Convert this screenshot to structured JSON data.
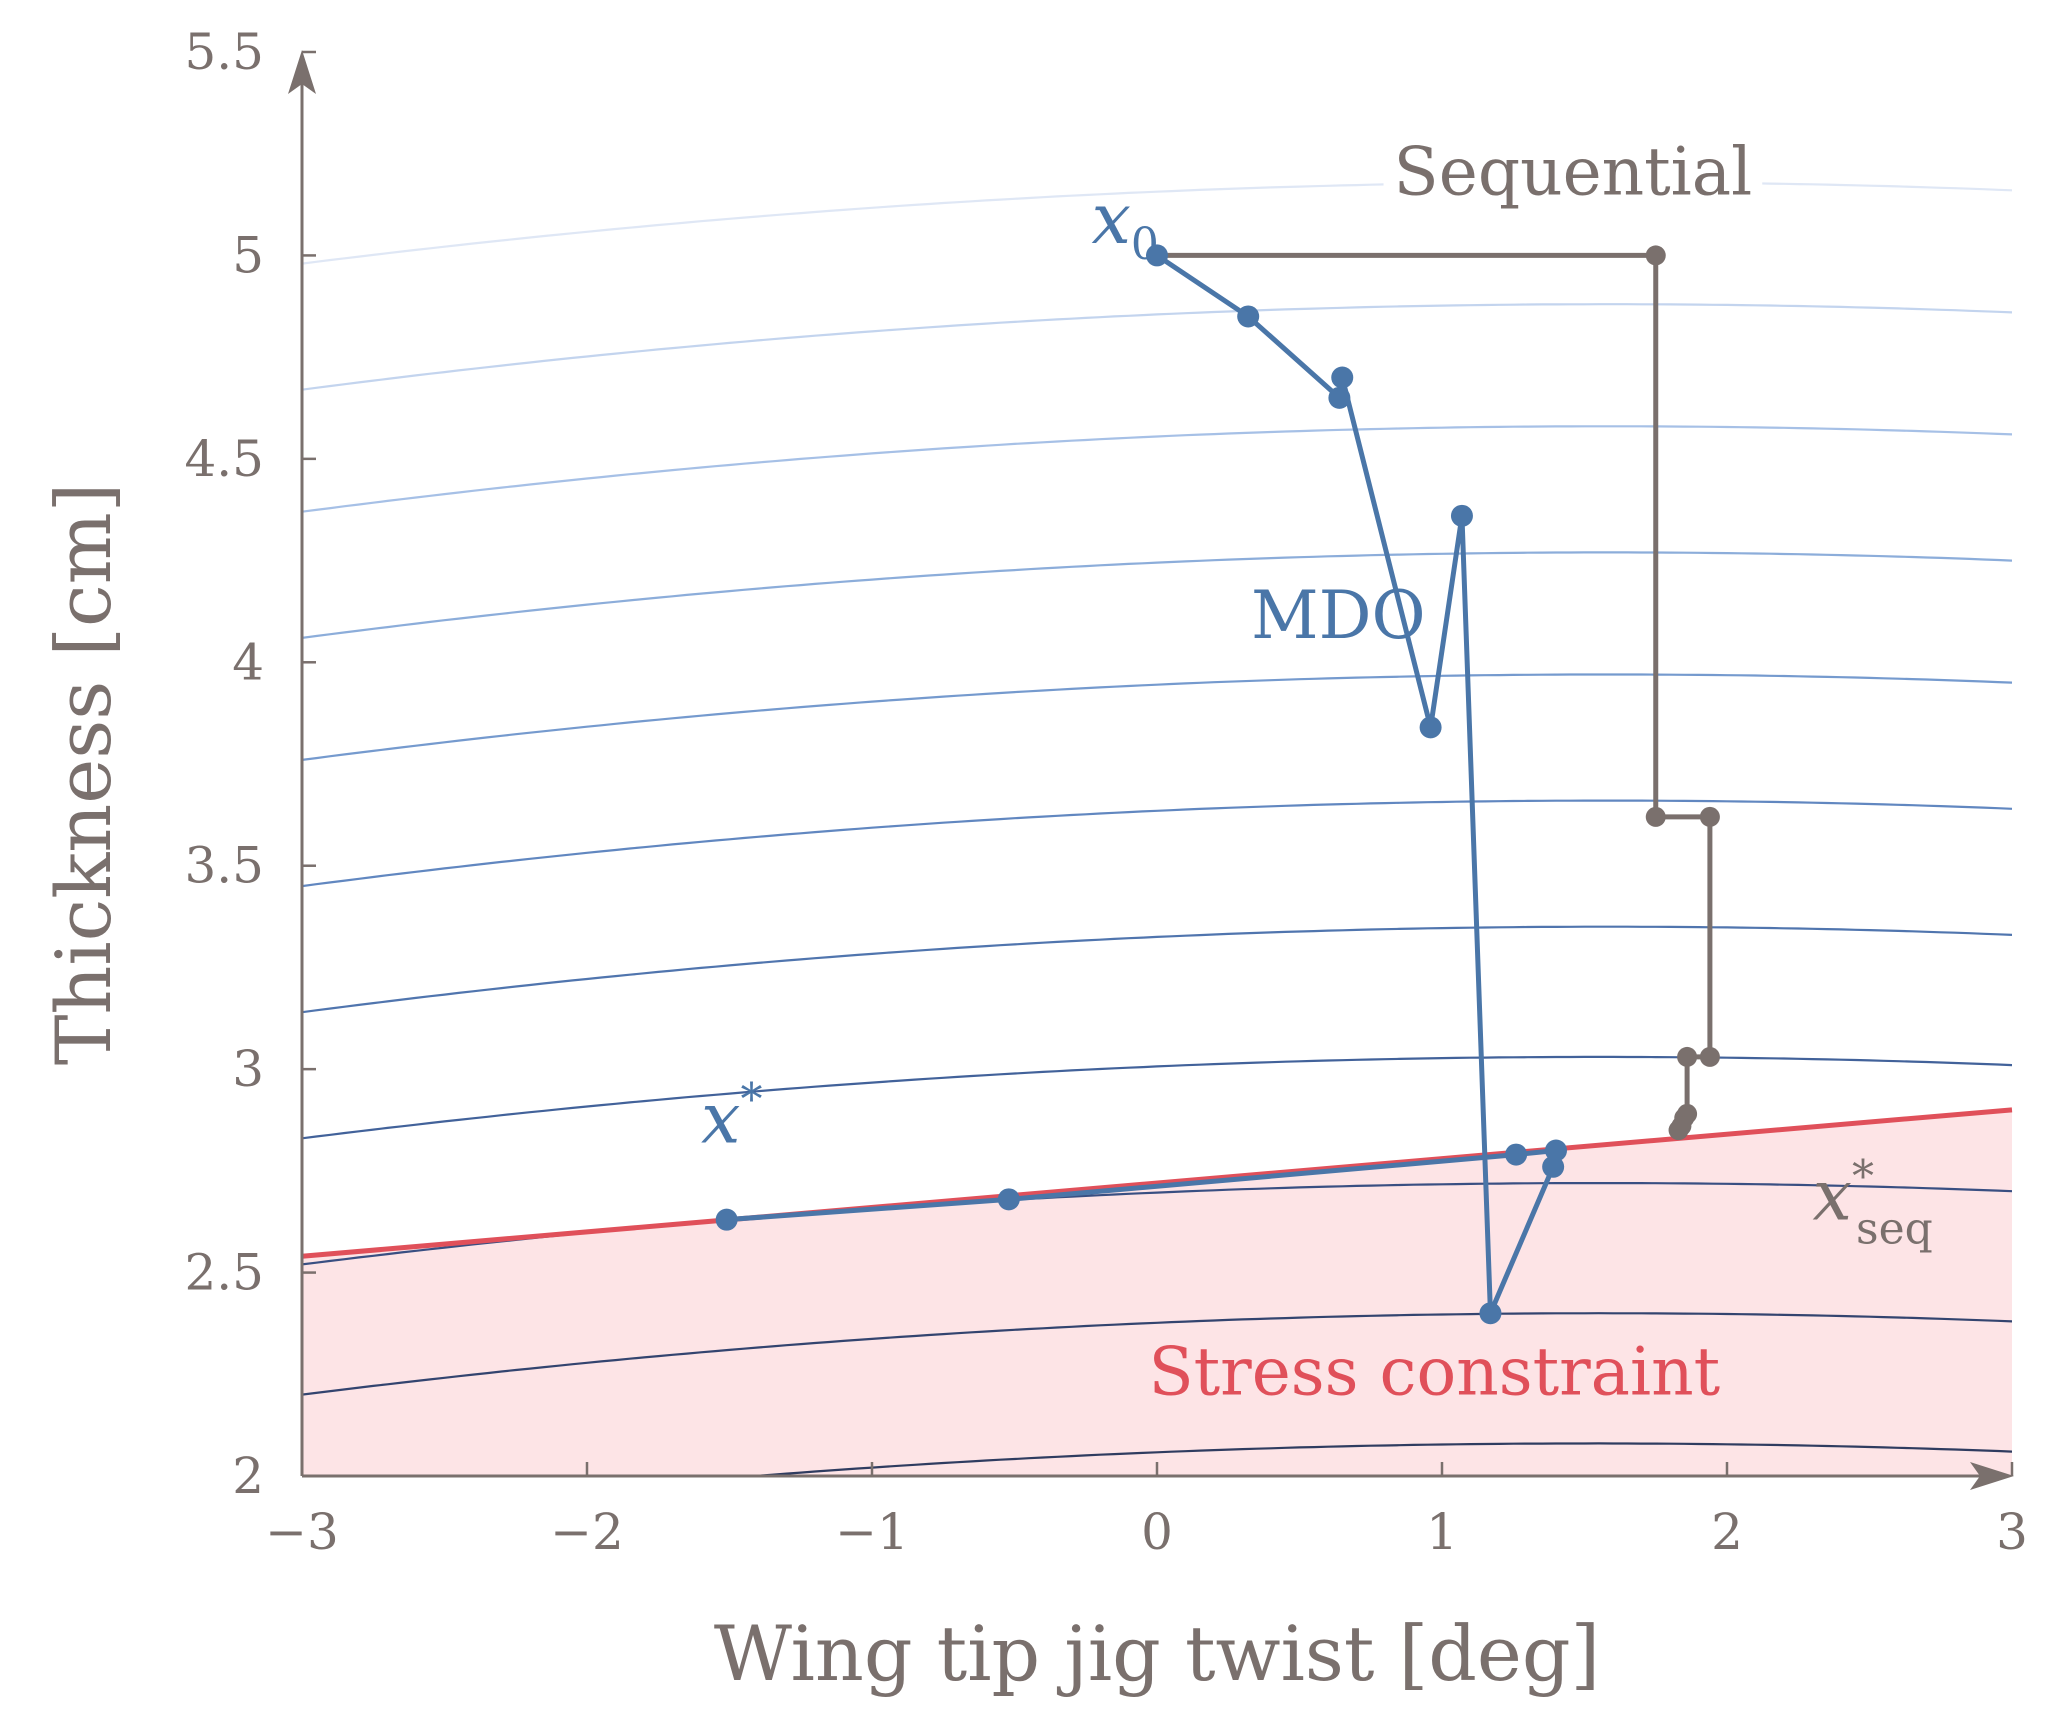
{
  "chart_data": {
    "type": "line",
    "xlabel": "Wing tip jig twist [deg]",
    "ylabel": "Thickness [cm]",
    "xlim": [
      -3,
      3
    ],
    "ylim": [
      2,
      5.5
    ],
    "x_ticks": [
      "−3",
      "−2",
      "−1",
      "0",
      "1",
      "2",
      "3"
    ],
    "y_ticks": [
      "2",
      "2.5",
      "3",
      "3.5",
      "4",
      "4.5",
      "5",
      "5.5"
    ],
    "x_tick_values": [
      -3,
      -2,
      -1,
      0,
      1,
      2,
      3
    ],
    "y_tick_values": [
      2,
      2.5,
      3,
      3.5,
      4,
      4.5,
      5,
      5.5
    ],
    "grid": false,
    "colors": {
      "axis": "#7a706d",
      "mdo": "#4a76a8",
      "sequential": "#7a706d",
      "constraint": "#e0505a",
      "infeasible_fill": "#fde4e6"
    },
    "contours": [
      {
        "level": 1,
        "at_x_minus3": 4.98,
        "at_x_1_5": 5.18,
        "at_x_3": 5.16,
        "color": "#dfe7f5"
      },
      {
        "level": 2,
        "at_x_minus3": 4.67,
        "at_x_1_5": 4.88,
        "at_x_3": 4.86,
        "color": "#c3d4ee"
      },
      {
        "level": 3,
        "at_x_minus3": 4.37,
        "at_x_1_5": 4.58,
        "at_x_3": 4.56,
        "color": "#a6c0e6"
      },
      {
        "level": 4,
        "at_x_minus3": 4.06,
        "at_x_1_5": 4.27,
        "at_x_3": 4.25,
        "color": "#8cadda"
      },
      {
        "level": 5,
        "at_x_minus3": 3.76,
        "at_x_1_5": 3.97,
        "at_x_3": 3.95,
        "color": "#759ace"
      },
      {
        "level": 6,
        "at_x_minus3": 3.45,
        "at_x_1_5": 3.66,
        "at_x_3": 3.64,
        "color": "#6187c0"
      },
      {
        "level": 7,
        "at_x_minus3": 3.14,
        "at_x_1_5": 3.35,
        "at_x_3": 3.33,
        "color": "#5075ae"
      },
      {
        "level": 8,
        "at_x_minus3": 2.83,
        "at_x_1_5": 3.03,
        "at_x_3": 3.01,
        "color": "#42629a"
      },
      {
        "level": 9,
        "at_x_minus3": 2.52,
        "at_x_1_5": 2.72,
        "at_x_3": 2.7,
        "color": "#394f82"
      },
      {
        "level": 10,
        "at_x_minus3": 2.2,
        "at_x_1_5": 2.4,
        "at_x_3": 2.38,
        "color": "#33446f"
      },
      {
        "level": 11,
        "at_x_minus3": 1.89,
        "at_x_1_5": 2.08,
        "at_x_3": 2.06,
        "color": "#2f3c60"
      }
    ],
    "constraint": {
      "name": "Stress constraint",
      "x": [
        -3,
        3
      ],
      "y": [
        2.54,
        2.9
      ]
    },
    "series": [
      {
        "name": "MDO",
        "x": [
          0.0,
          0.32,
          0.64,
          0.65,
          0.96,
          1.07,
          1.17,
          1.39,
          1.4,
          1.26,
          -0.52,
          -1.51
        ],
        "y": [
          5.0,
          4.85,
          4.65,
          4.7,
          3.84,
          4.36,
          2.4,
          2.76,
          2.8,
          2.79,
          2.68,
          2.63
        ]
      },
      {
        "name": "Sequential",
        "x": [
          0.0,
          1.75,
          1.75,
          1.94,
          1.94,
          1.86,
          1.86,
          1.85,
          1.84,
          1.83
        ],
        "y": [
          5.0,
          5.0,
          3.62,
          3.62,
          3.03,
          3.03,
          2.89,
          2.88,
          2.86,
          2.85
        ],
        "marker_indices": [
          1,
          2,
          3,
          4,
          5,
          6,
          7,
          8,
          9
        ]
      }
    ],
    "annotations": {
      "x0": {
        "base": "x",
        "sub": "0",
        "x": -0.23,
        "y": 5.03,
        "color": "#4a76a8"
      },
      "xstar": {
        "base": "x",
        "sup": "*",
        "x": -1.6,
        "y": 2.82,
        "color": "#4a76a8"
      },
      "xseq": {
        "base": "x",
        "sup": "*",
        "sub": "seq",
        "x": 2.3,
        "y": 2.63,
        "color": "#7a706d"
      },
      "sequential_label": {
        "text": "Sequential",
        "x": 0.83,
        "y": 5.15,
        "color": "#7a706d"
      },
      "mdo_label": {
        "text": "MDO",
        "x": 0.33,
        "y": 4.06,
        "color": "#4a76a8"
      },
      "stress_label": {
        "text": "Stress constraint",
        "x": -0.03,
        "y": 2.2,
        "color": "#e0505a"
      }
    }
  }
}
